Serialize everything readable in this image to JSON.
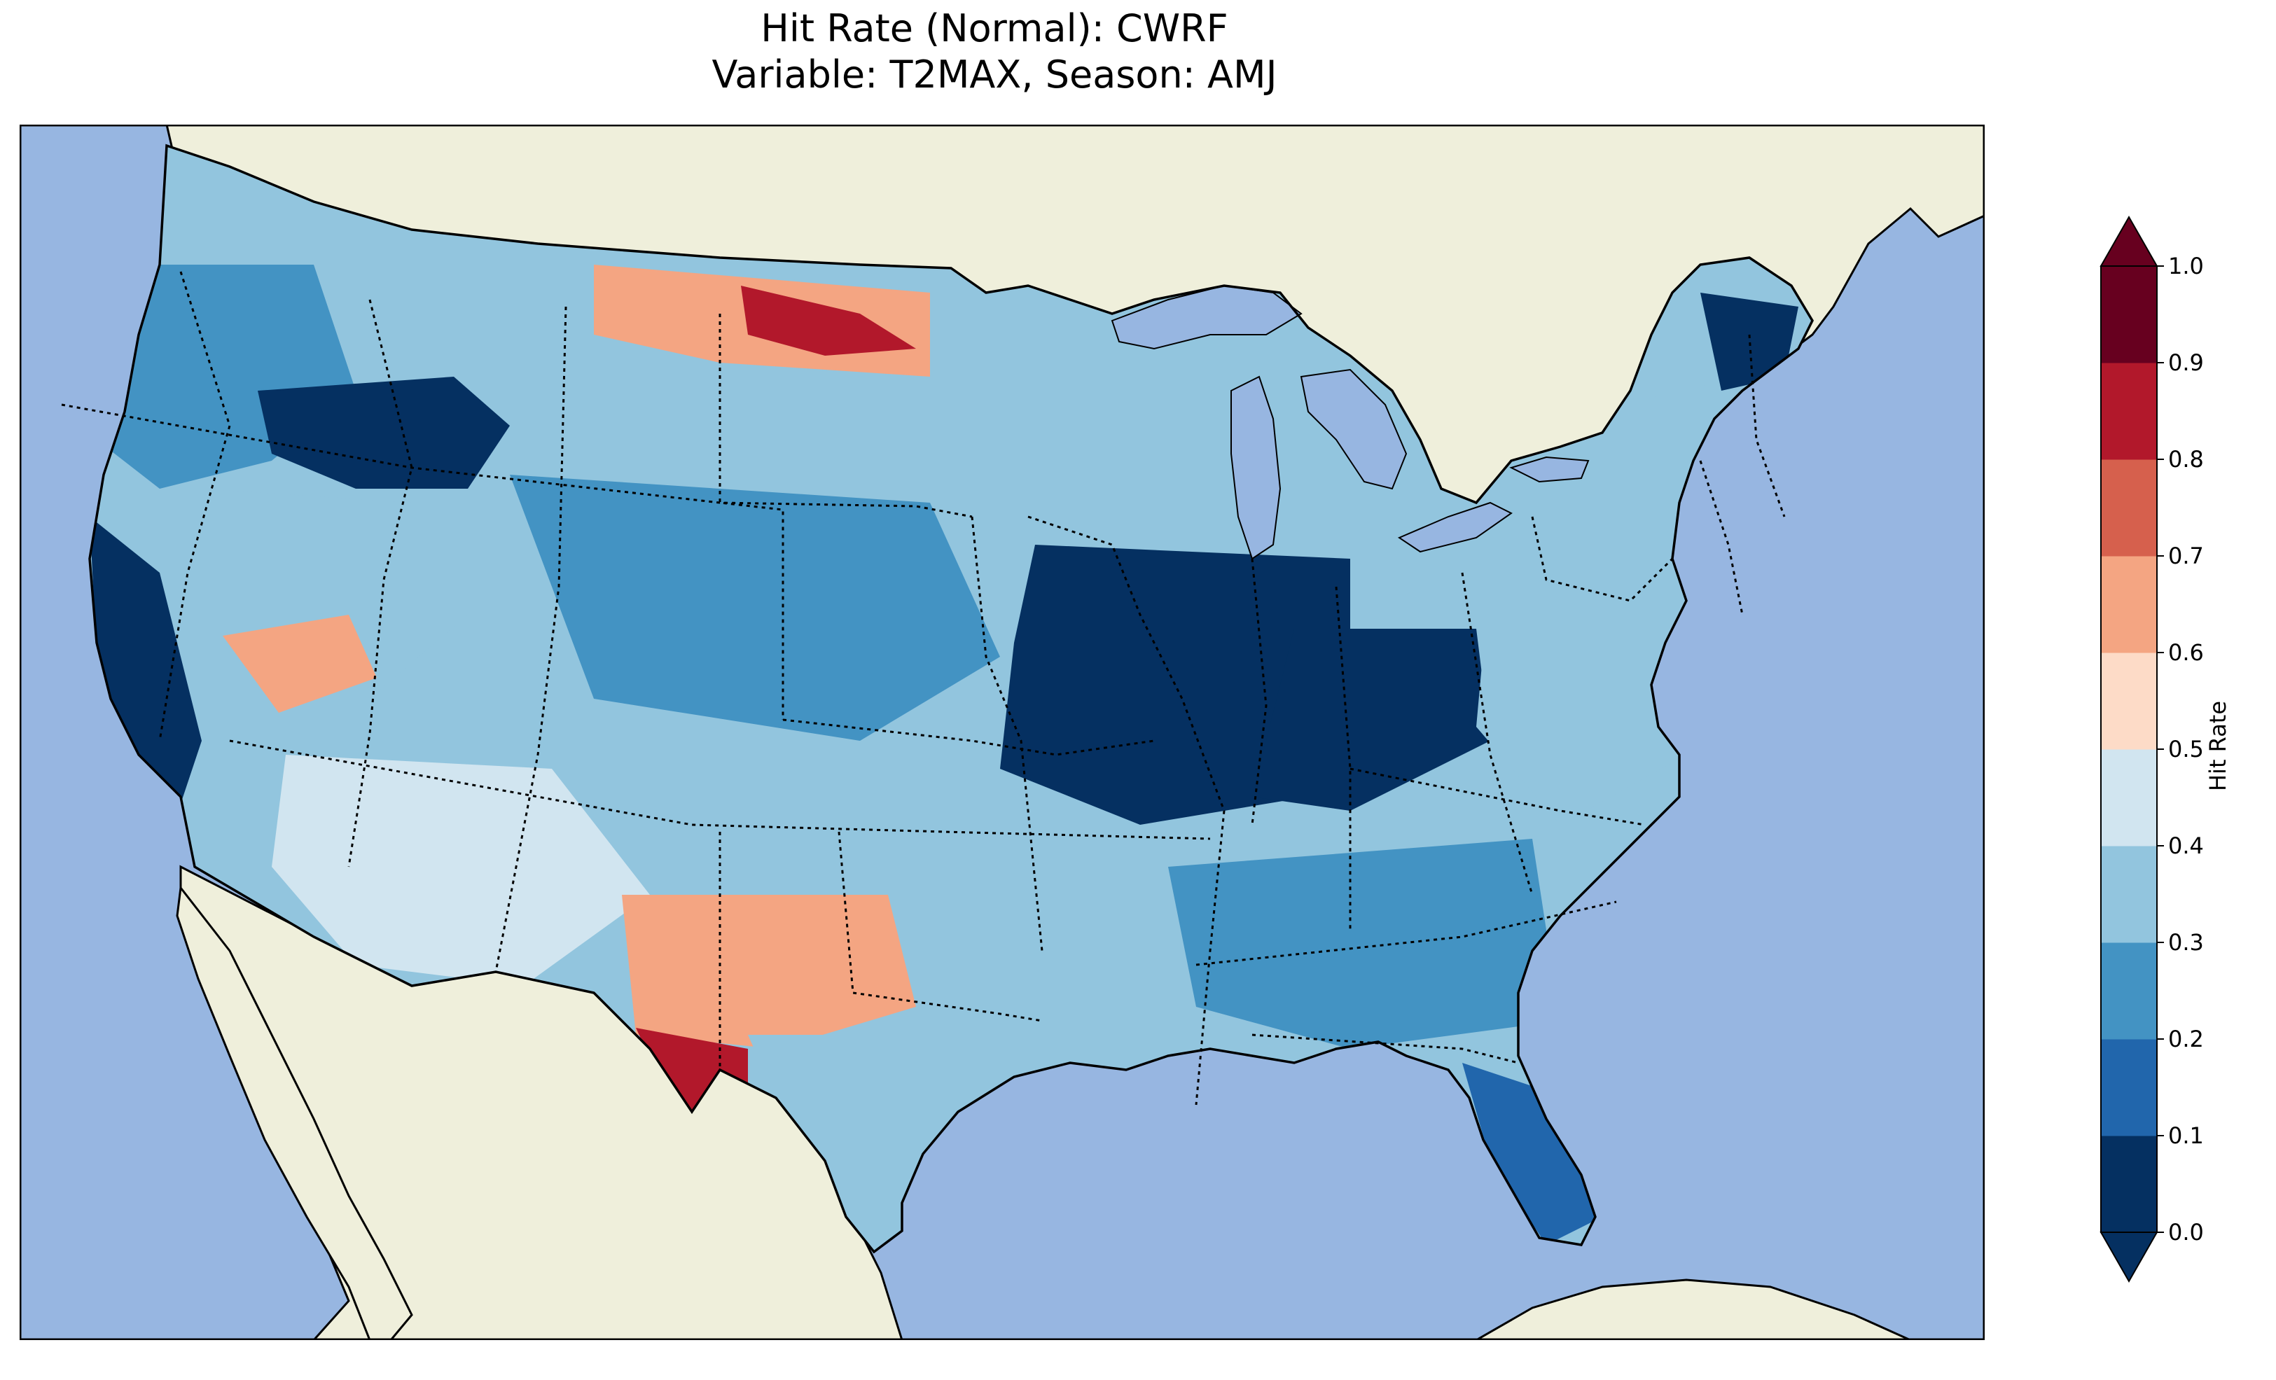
{
  "title": {
    "line1": "Hit Rate (Normal): CWRF",
    "line2": "Variable: T2MAX, Season: AMJ"
  },
  "colorbar": {
    "label": "Hit Rate",
    "ticks": [
      "0.0",
      "0.1",
      "0.2",
      "0.3",
      "0.4",
      "0.5",
      "0.6",
      "0.7",
      "0.8",
      "0.9",
      "1.0"
    ],
    "colors": [
      "#053061",
      "#2166ac",
      "#4393c3",
      "#92c5de",
      "#d1e5f0",
      "#fddbc7",
      "#f4a582",
      "#d6604d",
      "#b2182b",
      "#67001f"
    ]
  },
  "map_colors": {
    "ocean": "#97b6e1",
    "land": "#efefdb",
    "lakes": "#97b6e1",
    "coast": "#000000",
    "border": "#000000"
  },
  "map_data": {
    "variable": "T2MAX",
    "season": "AMJ",
    "model": "CWRF",
    "metric": "Hit Rate (Normal)",
    "regions": [
      {
        "name": "pacific-northwest",
        "value": 0.22
      },
      {
        "name": "northern-rockies",
        "value": 0.08
      },
      {
        "name": "montana-north",
        "value": 0.62
      },
      {
        "name": "north-dakota",
        "value": 0.85
      },
      {
        "name": "great-basin",
        "value": 0.32
      },
      {
        "name": "nevada-pocket",
        "value": 0.64
      },
      {
        "name": "california-coast",
        "value": 0.08
      },
      {
        "name": "southwest",
        "value": 0.45
      },
      {
        "name": "central-plains",
        "value": 0.28
      },
      {
        "name": "midwest",
        "value": 0.05
      },
      {
        "name": "ohio-valley",
        "value": 0.07
      },
      {
        "name": "west-texas",
        "value": 0.64
      },
      {
        "name": "big-bend",
        "value": 0.88
      },
      {
        "name": "south-texas",
        "value": 0.34
      },
      {
        "name": "southeast",
        "value": 0.26
      },
      {
        "name": "florida",
        "value": 0.18
      },
      {
        "name": "mid-atlantic",
        "value": 0.32
      },
      {
        "name": "northeast",
        "value": 0.36
      },
      {
        "name": "maine",
        "value": 0.05
      }
    ]
  }
}
